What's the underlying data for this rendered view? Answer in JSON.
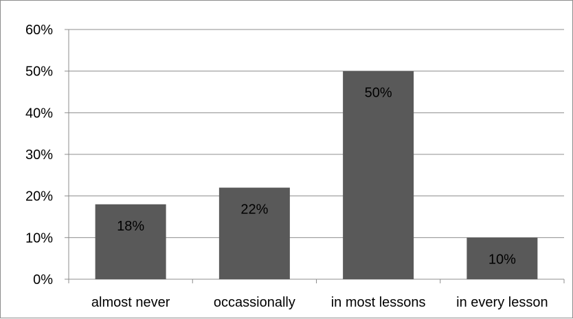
{
  "chart_data": {
    "type": "bar",
    "categories": [
      "almost never",
      "occassionally",
      "in most lessons",
      "in every lesson"
    ],
    "values": [
      18,
      22,
      50,
      10
    ],
    "data_labels": [
      "18%",
      "22%",
      "50%",
      "10%"
    ],
    "ylim": [
      0,
      60
    ],
    "y_ticks": [
      0,
      10,
      20,
      30,
      40,
      50,
      60
    ],
    "y_tick_labels": [
      "0%",
      "10%",
      "20%",
      "30%",
      "40%",
      "50%",
      "60%"
    ],
    "grid": true,
    "legend": "none",
    "colors": {
      "bar": "#595959",
      "grid": "#8c8c8c",
      "axis": "#8c8c8c",
      "text": "#000000"
    }
  }
}
